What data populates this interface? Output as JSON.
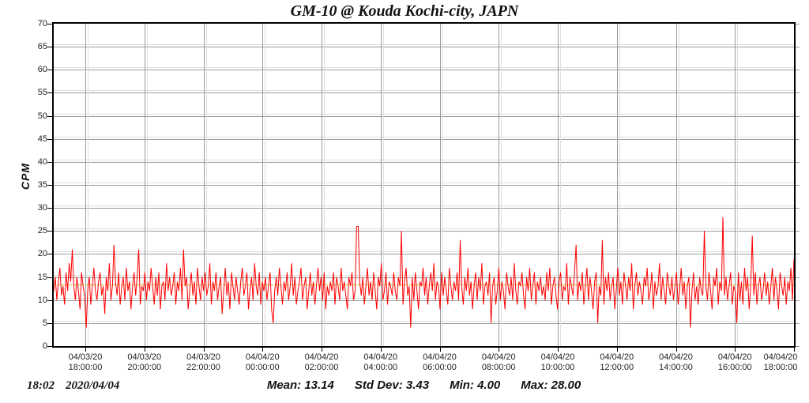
{
  "chart_data": {
    "type": "line",
    "title": "GM-10 @ Kouda Kochi-city, JAPN",
    "ylabel": "CPM",
    "ylim": [
      0,
      70
    ],
    "ytick_step": 5,
    "grid": true,
    "series_name": "CPM",
    "series_color": "#ff0000",
    "mean_line_color": "#b8b400",
    "grid_color": "#9a9a9a",
    "axis_color": "#000000",
    "mean": 13.14,
    "std_dev": 3.43,
    "min": 4.0,
    "max": 28.0,
    "x_ticks": [
      {
        "date": "04/03/20",
        "time": "18:00:00"
      },
      {
        "date": "04/03/20",
        "time": "20:00:00"
      },
      {
        "date": "04/03/20",
        "time": "22:00:00"
      },
      {
        "date": "04/04/20",
        "time": "00:00:00"
      },
      {
        "date": "04/04/20",
        "time": "02:00:00"
      },
      {
        "date": "04/04/20",
        "time": "04:00:00"
      },
      {
        "date": "04/04/20",
        "time": "06:00:00"
      },
      {
        "date": "04/04/20",
        "time": "08:00:00"
      },
      {
        "date": "04/04/20",
        "time": "10:00:00"
      },
      {
        "date": "04/04/20",
        "time": "12:00:00"
      },
      {
        "date": "04/04/20",
        "time": "14:00:00"
      },
      {
        "date": "04/04/20",
        "time": "16:00:00"
      },
      {
        "date": "04/04/20",
        "time": "18:00:00"
      }
    ],
    "values": [
      12,
      15,
      10,
      14,
      17,
      11,
      13,
      9,
      16,
      12,
      18,
      14,
      21,
      13,
      10,
      15,
      12,
      8,
      16,
      13,
      11,
      4,
      12,
      15,
      9,
      13,
      17,
      12,
      10,
      14,
      16,
      11,
      13,
      7,
      15,
      12,
      18,
      10,
      13,
      22,
      14,
      11,
      16,
      9,
      13,
      15,
      10,
      17,
      12,
      14,
      8,
      13,
      16,
      11,
      15,
      21,
      9,
      13,
      12,
      16,
      10,
      14,
      12,
      17,
      13,
      9,
      15,
      11,
      16,
      8,
      13,
      14,
      10,
      18,
      12,
      15,
      11,
      13,
      16,
      9,
      14,
      12,
      17,
      10,
      21,
      13,
      15,
      8,
      12,
      16,
      11,
      14,
      9,
      17,
      13,
      10,
      15,
      12,
      16,
      11,
      13,
      18,
      9,
      14,
      12,
      16,
      10,
      13,
      15,
      7,
      12,
      17,
      11,
      14,
      8,
      16,
      13,
      10,
      15,
      12,
      9,
      14,
      17,
      11,
      13,
      16,
      8,
      12,
      15,
      10,
      18,
      13,
      11,
      16,
      9,
      14,
      12,
      15,
      10,
      13,
      16,
      8,
      5,
      12,
      15,
      11,
      17,
      13,
      9,
      14,
      12,
      16,
      10,
      13,
      18,
      11,
      15,
      9,
      12,
      14,
      17,
      10,
      13,
      15,
      8,
      12,
      16,
      11,
      14,
      9,
      13,
      17,
      12,
      15,
      10,
      16,
      8,
      13,
      11,
      14,
      12,
      16,
      9,
      15,
      13,
      10,
      17,
      12,
      14,
      11,
      8,
      15,
      13,
      16,
      10,
      12,
      26,
      26,
      14,
      11,
      15,
      9,
      13,
      17,
      11,
      14,
      10,
      16,
      12,
      8,
      15,
      13,
      18,
      10,
      12,
      16,
      9,
      14,
      13,
      11,
      16,
      12,
      10,
      15,
      13,
      25,
      9,
      14,
      17,
      11,
      13,
      4,
      15,
      10,
      16,
      12,
      8,
      14,
      13,
      17,
      11,
      15,
      9,
      13,
      16,
      12,
      18,
      10,
      14,
      13,
      8,
      16,
      11,
      15,
      12,
      9,
      17,
      13,
      10,
      14,
      12,
      16,
      10,
      23,
      13,
      9,
      15,
      12,
      17,
      11,
      14,
      8,
      13,
      16,
      10,
      15,
      12,
      18,
      9,
      13,
      14,
      11,
      16,
      5,
      13,
      15,
      9,
      12,
      17,
      10,
      14,
      12,
      8,
      16,
      13,
      11,
      15,
      10,
      18,
      12,
      9,
      14,
      13,
      16,
      11,
      8,
      15,
      12,
      17,
      10,
      13,
      16,
      9,
      14,
      12,
      15,
      11,
      13,
      10,
      16,
      12,
      17,
      9,
      13,
      15,
      11,
      8,
      14,
      16,
      10,
      13,
      12,
      18,
      9,
      15,
      13,
      11,
      16,
      22,
      10,
      14,
      12,
      16,
      9,
      13,
      17,
      10,
      15,
      12,
      8,
      14,
      16,
      5,
      13,
      11,
      23,
      9,
      15,
      12,
      16,
      10,
      13,
      15,
      8,
      12,
      17,
      11,
      14,
      9,
      16,
      13,
      10,
      15,
      12,
      18,
      8,
      13,
      16,
      11,
      14,
      12,
      9,
      15,
      13,
      17,
      10,
      12,
      16,
      8,
      14,
      11,
      13,
      18,
      10,
      15,
      12,
      9,
      16,
      13,
      11,
      15,
      10,
      13,
      16,
      9,
      12,
      17,
      11,
      14,
      8,
      13,
      15,
      4,
      12,
      16,
      10,
      13,
      9,
      15,
      12,
      11,
      25,
      13,
      10,
      16,
      12,
      8,
      15,
      13,
      17,
      9,
      14,
      12,
      28,
      11,
      15,
      10,
      13,
      16,
      9,
      13,
      12,
      5,
      16,
      10,
      14,
      9,
      17,
      12,
      15,
      8,
      13,
      24,
      11,
      16,
      9,
      13,
      15,
      10,
      12,
      16,
      11,
      14,
      9,
      13,
      17,
      10,
      15,
      12,
      8,
      16,
      13,
      11,
      15,
      9,
      14,
      12,
      17,
      10,
      19
    ]
  },
  "footer": {
    "time": "18:02",
    "date": "2020/04/04",
    "stats": [
      {
        "text": "Mean: 13.14"
      },
      {
        "text": "Std Dev: 3.43"
      },
      {
        "text": "Min: 4.00"
      },
      {
        "text": "Max: 28.00"
      }
    ]
  }
}
